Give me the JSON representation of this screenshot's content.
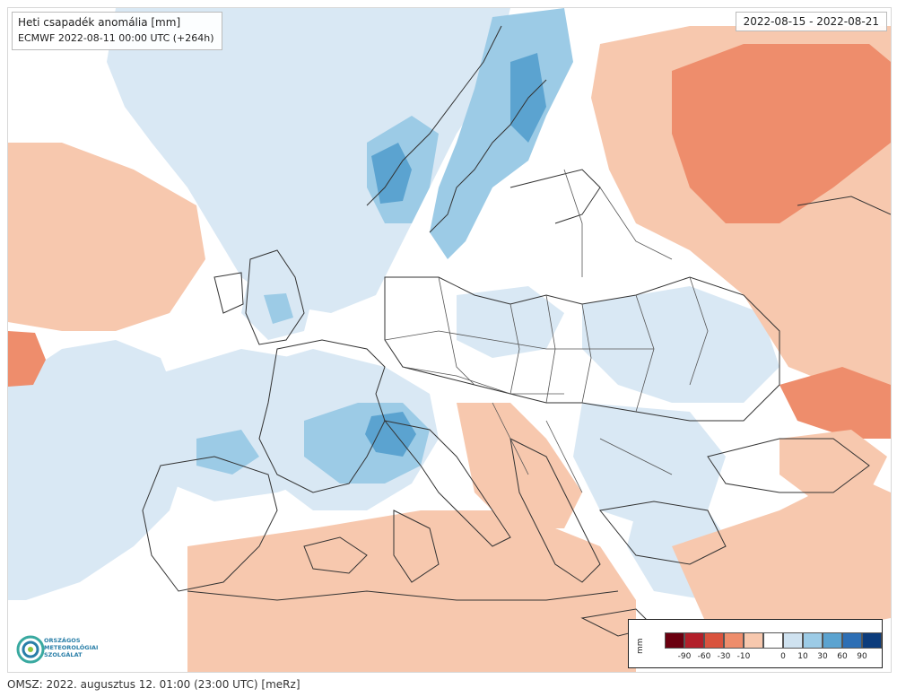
{
  "map": {
    "title": "Heti csapadék anomália [mm]",
    "subtitle": "ECMWF 2022-08-11 00:00 UTC (+264h)",
    "date_range": "2022-08-15 - 2022-08-21"
  },
  "logo": {
    "line1": "ORSZÁGOS",
    "line2": "METEOROLÓGIAI",
    "line3": "SZOLGÁLAT"
  },
  "legend": {
    "unit": "mm",
    "colors": [
      "#6b0010",
      "#b21f2a",
      "#d9533e",
      "#ee8d6c",
      "#f7c8ae",
      "#ffffff",
      "#cfe2f0",
      "#9ccbe6",
      "#5ba3d0",
      "#2d6fb5",
      "#0c3c7c"
    ],
    "labels": [
      "-90",
      "-60",
      "-30",
      "-10",
      "0",
      "10",
      "30",
      "60",
      "90"
    ]
  },
  "footer": {
    "text": "OMSZ: 2022. augusztus 12. 01:00 (23:00 UTC)  [meRz]"
  }
}
